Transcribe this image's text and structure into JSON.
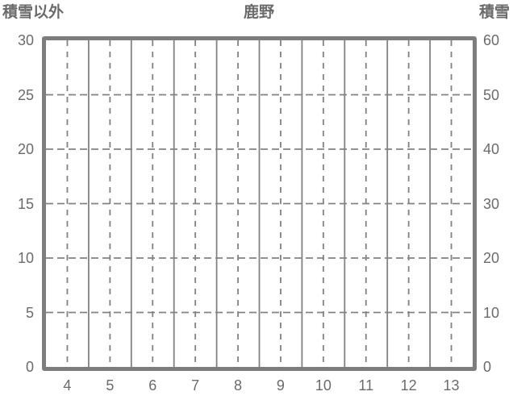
{
  "colors": {
    "text": "#6b6b6b",
    "border": "#7d7d7d",
    "gridline": "#828282",
    "background": "#ffffff"
  },
  "chart_data": {
    "type": "line",
    "title": "鹿野",
    "categories": [
      "4",
      "5",
      "6",
      "7",
      "8",
      "9",
      "10",
      "11",
      "12",
      "13"
    ],
    "series": [],
    "y_left": {
      "title": "積雪以外",
      "min": 0,
      "max": 30,
      "step": 5,
      "tick_labels": [
        "0",
        "5",
        "10",
        "15",
        "20",
        "25",
        "30"
      ]
    },
    "y_right": {
      "title": "積雪",
      "min": 0,
      "max": 60,
      "step": 10,
      "tick_labels": [
        "0",
        "10",
        "20",
        "30",
        "40",
        "50",
        "60"
      ]
    },
    "grid": "on",
    "legend": "none",
    "plot_content": "empty"
  }
}
